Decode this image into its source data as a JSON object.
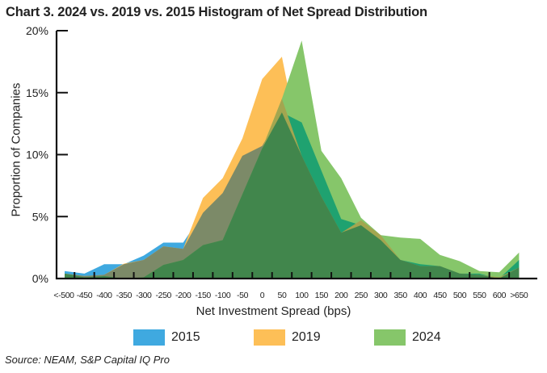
{
  "chart_data": {
    "type": "area",
    "title": "Chart 3. 2024 vs. 2019 vs. 2015 Histogram of Net Spread Distribution",
    "xlabel": "Net Investment Spread (bps)",
    "ylabel": "Proportion of Companies",
    "ylim": [
      0,
      20
    ],
    "yticks": [
      "0%",
      "5%",
      "10%",
      "15%",
      "20%"
    ],
    "categories": [
      "<-500",
      "-450",
      "-400",
      "-350",
      "-300",
      "-250",
      "-200",
      "-150",
      "-100",
      "-50",
      "0",
      "50",
      "100",
      "150",
      "200",
      "250",
      "300",
      "350",
      "400",
      "450",
      "500",
      "550",
      "600",
      ">650"
    ],
    "series": [
      {
        "name": "2015",
        "color": "#3fa9e0",
        "values": [
          0.6,
          0.4,
          1.15,
          1.15,
          1.85,
          2.9,
          2.9,
          5.3,
          6.9,
          9.9,
          10.7,
          13.4,
          12.6,
          8.7,
          4.8,
          4.3,
          3.1,
          1.5,
          1.15,
          1.0,
          0.4,
          0.4,
          0.0,
          1.5
        ]
      },
      {
        "name": "2019",
        "color": "#fdbf57",
        "values": [
          0.4,
          0.2,
          0.3,
          1.2,
          1.5,
          2.6,
          2.4,
          6.5,
          8.1,
          11.3,
          16.1,
          17.9,
          9.9,
          6.6,
          3.7,
          4.7,
          3.5,
          1.5,
          1.0,
          1.0,
          0.4,
          0.3,
          0.1,
          0.9
        ]
      },
      {
        "name": "2024",
        "color": "#86c66a",
        "values": [
          0.4,
          0.1,
          0.2,
          0.0,
          0.1,
          1.1,
          1.5,
          2.7,
          3.1,
          6.8,
          10.5,
          14.5,
          19.2,
          10.3,
          8.1,
          4.9,
          3.5,
          3.3,
          3.2,
          1.9,
          1.4,
          0.6,
          0.5,
          2.1
        ]
      }
    ],
    "overlap_colors": {
      "2015+2019": "#7c8a68",
      "2015+2024": "#1fa270",
      "2019+2024": "#a3a650",
      "all": "#41864c"
    },
    "grid": false,
    "legend": "bottom"
  },
  "source": "Source: NEAM, S&P Capital IQ Pro"
}
